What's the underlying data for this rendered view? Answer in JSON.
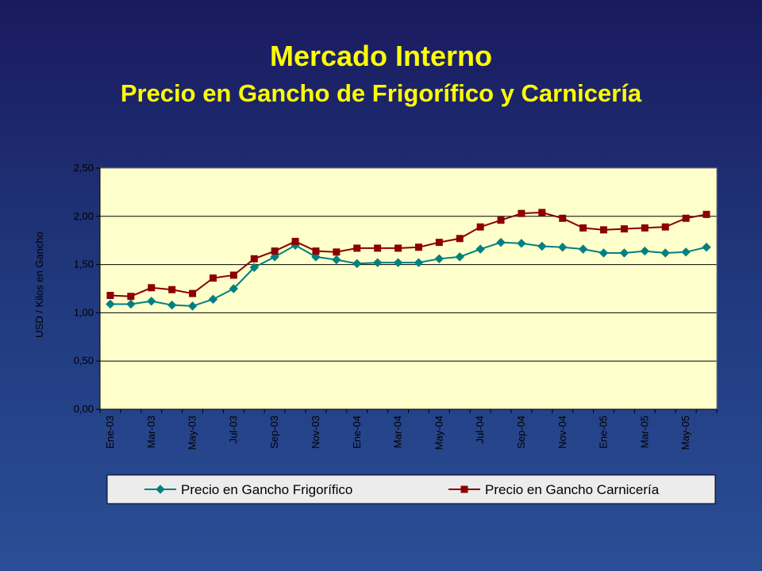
{
  "slide": {
    "title": "Mercado Interno",
    "subtitle": "Precio en Gancho de Frigorífico y Carnicería"
  },
  "chart_data": {
    "type": "line",
    "ylabel": "USD / Kilos en Gancho",
    "ylim": [
      0,
      2.5
    ],
    "yticks": [
      "0,00",
      "0,50",
      "1,00",
      "1,50",
      "2,00",
      "2,50"
    ],
    "ytick_values": [
      0,
      0.5,
      1.0,
      1.5,
      2.0,
      2.5
    ],
    "x_labels": [
      "Ene-03",
      "Mar-03",
      "May-03",
      "Jul-03",
      "Sep-03",
      "Nov-03",
      "Ene-04",
      "Mar-04",
      "May-04",
      "Jul-04",
      "Sep-04",
      "Nov-04",
      "Ene-05",
      "Mar-05",
      "May-05"
    ],
    "grid": true,
    "legend_position": "bottom",
    "plot_background": "#ffffcc",
    "series": [
      {
        "name": "Precio en Gancho Frigorífico",
        "color": "#008080",
        "marker": "diamond",
        "values": [
          1.09,
          1.09,
          1.12,
          1.08,
          1.07,
          1.14,
          1.25,
          1.47,
          1.58,
          1.7,
          1.58,
          1.55,
          1.51,
          1.52,
          1.52,
          1.52,
          1.56,
          1.58,
          1.66,
          1.73,
          1.72,
          1.69,
          1.68,
          1.66,
          1.62,
          1.62,
          1.64,
          1.62,
          1.63,
          1.68
        ]
      },
      {
        "name": "Precio en Gancho Carnicería",
        "color": "#8b0000",
        "marker": "square",
        "values": [
          1.18,
          1.17,
          1.26,
          1.24,
          1.2,
          1.36,
          1.39,
          1.56,
          1.64,
          1.74,
          1.64,
          1.63,
          1.67,
          1.67,
          1.67,
          1.68,
          1.73,
          1.77,
          1.89,
          1.96,
          2.03,
          2.04,
          1.98,
          1.88,
          1.86,
          1.87,
          1.88,
          1.89,
          1.98,
          2.02
        ]
      }
    ]
  }
}
